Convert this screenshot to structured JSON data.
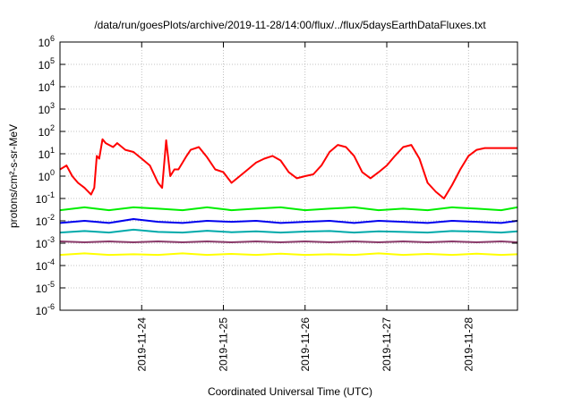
{
  "chart_data": {
    "type": "line",
    "title": "/data/run/goesPlots/archive/2019-11-28/14:00/flux/../flux/5daysEarthDataFluxes.txt",
    "xlabel": "Coordinated Universal Time (UTC)",
    "ylabel": "protons/cm²-s-sr-MeV",
    "y_scale": "log",
    "ylim": [
      1e-06,
      1000000.0
    ],
    "xlim": [
      0,
      5.6
    ],
    "x_tick_values": [
      1,
      2,
      3,
      4,
      5
    ],
    "x_tick_labels": [
      "2019-11-24",
      "2019-11-25",
      "2019-11-26",
      "2019-11-27",
      "2019-11-28"
    ],
    "y_ticks": [
      {
        "exp": -6,
        "base": "10",
        "power": "-6"
      },
      {
        "exp": -5,
        "base": "10",
        "power": "-5"
      },
      {
        "exp": -4,
        "base": "10",
        "power": "-4"
      },
      {
        "exp": -3,
        "base": "10",
        "power": "-3"
      },
      {
        "exp": -2,
        "base": "10",
        "power": "-2"
      },
      {
        "exp": -1,
        "base": "10",
        "power": "-1"
      },
      {
        "exp": 0,
        "base": "10",
        "power": "0"
      },
      {
        "exp": 1,
        "base": "10",
        "power": "1"
      },
      {
        "exp": 2,
        "base": "10",
        "power": "2"
      },
      {
        "exp": 3,
        "base": "10",
        "power": "3"
      },
      {
        "exp": 4,
        "base": "10",
        "power": "4"
      },
      {
        "exp": 5,
        "base": "10",
        "power": "5"
      },
      {
        "exp": 6,
        "base": "10",
        "power": "6"
      }
    ],
    "grid": true,
    "series": [
      {
        "color": "#ff0000",
        "x": [
          0.0,
          0.08,
          0.15,
          0.22,
          0.3,
          0.38,
          0.42,
          0.45,
          0.48,
          0.52,
          0.56,
          0.6,
          0.65,
          0.7,
          0.8,
          0.9,
          1.0,
          1.1,
          1.2,
          1.25,
          1.3,
          1.35,
          1.4,
          1.45,
          1.5,
          1.55,
          1.6,
          1.7,
          1.8,
          1.9,
          2.0,
          2.1,
          2.2,
          2.3,
          2.4,
          2.5,
          2.6,
          2.7,
          2.8,
          2.9,
          3.0,
          3.1,
          3.2,
          3.3,
          3.4,
          3.5,
          3.6,
          3.7,
          3.8,
          3.9,
          4.0,
          4.1,
          4.2,
          4.3,
          4.4,
          4.5,
          4.6,
          4.7,
          4.8,
          4.9,
          5.0,
          5.1,
          5.2,
          5.3,
          5.4,
          5.5,
          5.6
        ],
        "y": [
          2,
          3,
          1,
          0.5,
          0.3,
          0.15,
          0.3,
          8,
          6,
          45,
          30,
          25,
          20,
          30,
          15,
          12,
          6,
          3,
          0.5,
          0.3,
          40,
          1,
          2,
          2,
          4,
          8,
          15,
          20,
          7,
          2,
          1.5,
          0.5,
          1,
          2,
          4,
          6,
          8,
          5,
          1.5,
          0.8,
          1,
          1.2,
          3,
          12,
          25,
          20,
          8,
          1.5,
          0.8,
          1.5,
          3,
          8,
          20,
          25,
          6,
          0.5,
          0.2,
          0.1,
          0.4,
          2,
          8,
          15,
          18,
          18,
          18,
          18,
          18
        ]
      },
      {
        "color": "#00ee00",
        "x": [
          0.0,
          0.3,
          0.6,
          0.9,
          1.2,
          1.5,
          1.8,
          2.1,
          2.4,
          2.7,
          3.0,
          3.3,
          3.6,
          3.9,
          4.2,
          4.5,
          4.8,
          5.1,
          5.4,
          5.6
        ],
        "y": [
          0.03,
          0.04,
          0.03,
          0.04,
          0.035,
          0.03,
          0.04,
          0.03,
          0.035,
          0.04,
          0.03,
          0.035,
          0.04,
          0.03,
          0.035,
          0.03,
          0.04,
          0.035,
          0.03,
          0.04
        ]
      },
      {
        "color": "#0000ee",
        "x": [
          0.0,
          0.3,
          0.6,
          0.9,
          1.2,
          1.5,
          1.8,
          2.1,
          2.4,
          2.7,
          3.0,
          3.3,
          3.6,
          3.9,
          4.2,
          4.5,
          4.8,
          5.1,
          5.4,
          5.6
        ],
        "y": [
          0.008,
          0.01,
          0.008,
          0.012,
          0.009,
          0.008,
          0.01,
          0.009,
          0.01,
          0.008,
          0.009,
          0.01,
          0.008,
          0.01,
          0.009,
          0.008,
          0.01,
          0.009,
          0.008,
          0.01
        ]
      },
      {
        "color": "#00aaaa",
        "x": [
          0.0,
          0.3,
          0.6,
          0.9,
          1.2,
          1.5,
          1.8,
          2.1,
          2.4,
          2.7,
          3.0,
          3.3,
          3.6,
          3.9,
          4.2,
          4.5,
          4.8,
          5.1,
          5.4,
          5.6
        ],
        "y": [
          0.003,
          0.0035,
          0.003,
          0.004,
          0.0032,
          0.003,
          0.0036,
          0.0031,
          0.0034,
          0.003,
          0.0033,
          0.0035,
          0.003,
          0.0034,
          0.0032,
          0.003,
          0.0035,
          0.0033,
          0.003,
          0.0034
        ]
      },
      {
        "color": "#8a3a6a",
        "x": [
          0.0,
          0.3,
          0.6,
          0.9,
          1.2,
          1.5,
          1.8,
          2.1,
          2.4,
          2.7,
          3.0,
          3.3,
          3.6,
          3.9,
          4.2,
          4.5,
          4.8,
          5.1,
          5.4,
          5.6
        ],
        "y": [
          0.0012,
          0.0011,
          0.0012,
          0.0011,
          0.0012,
          0.0011,
          0.0012,
          0.0011,
          0.0012,
          0.0011,
          0.0012,
          0.0011,
          0.0012,
          0.0011,
          0.0012,
          0.0011,
          0.0012,
          0.0011,
          0.0012,
          0.0011
        ]
      },
      {
        "color": "#ffff00",
        "x": [
          0.0,
          0.3,
          0.6,
          0.9,
          1.2,
          1.5,
          1.8,
          2.1,
          2.4,
          2.7,
          3.0,
          3.3,
          3.6,
          3.9,
          4.2,
          4.5,
          4.8,
          5.1,
          5.4,
          5.6
        ],
        "y": [
          0.0003,
          0.00035,
          0.0003,
          0.00032,
          0.0003,
          0.00035,
          0.0003,
          0.00033,
          0.0003,
          0.00034,
          0.0003,
          0.00032,
          0.0003,
          0.00035,
          0.0003,
          0.00033,
          0.0003,
          0.00034,
          0.0003,
          0.00032
        ]
      }
    ]
  }
}
